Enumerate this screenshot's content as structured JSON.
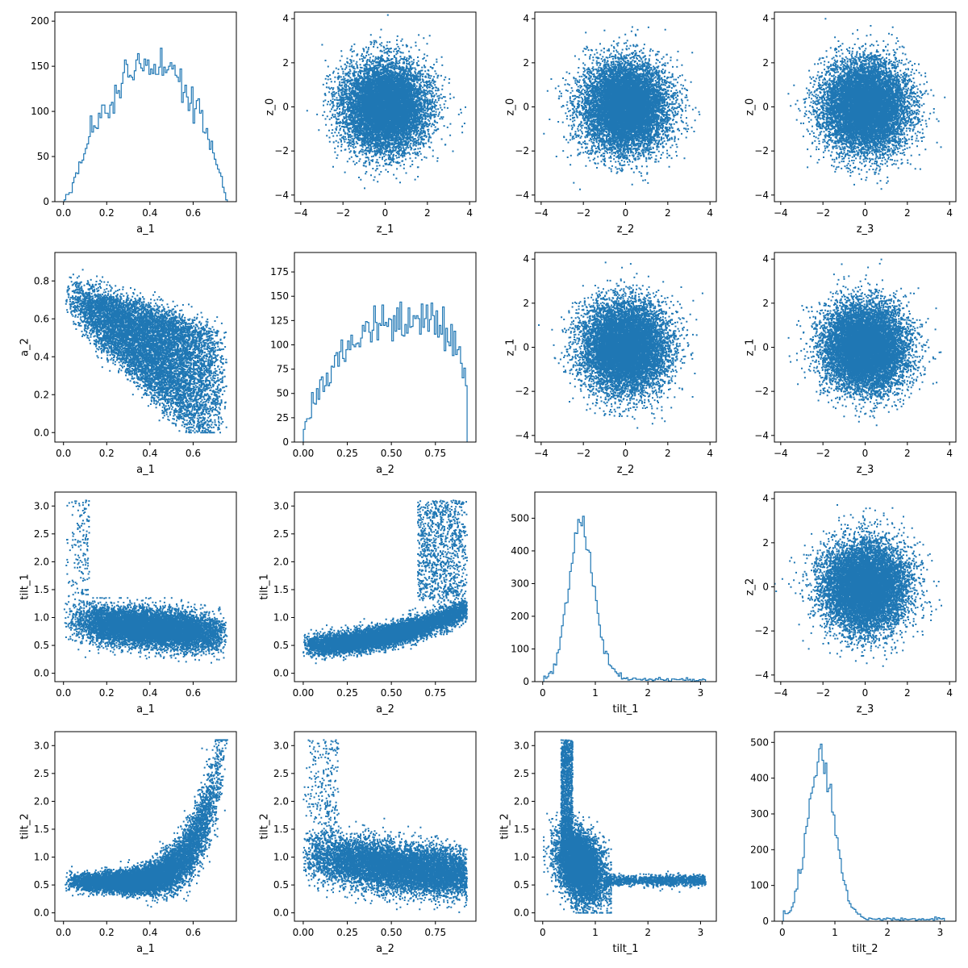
{
  "colors": {
    "series": "#1f77b4",
    "axes": "#000000",
    "background": "#ffffff"
  },
  "chart_data": [
    {
      "type": "histogram",
      "xlabel": "a_1",
      "ylabel": "",
      "xlim": [
        -0.04,
        0.8
      ],
      "ylim": [
        0,
        210
      ],
      "xticks": [
        0.0,
        0.2,
        0.4,
        0.6
      ],
      "yticks": [
        0,
        50,
        100,
        150,
        200
      ],
      "dist": {
        "kind": "beta",
        "a": 2.2,
        "b": 2.0,
        "lo": 0.0,
        "hi": 0.76,
        "n": 10000,
        "bins": 100,
        "seed": 11
      }
    },
    {
      "type": "scatter",
      "xlabel": "z_1",
      "ylabel": "z_0",
      "xlim": [
        -4.3,
        4.3
      ],
      "ylim": [
        -4.3,
        4.3
      ],
      "xticks": [
        -4,
        -2,
        0,
        2,
        4
      ],
      "yticks": [
        -4,
        -2,
        0,
        2,
        4
      ],
      "dist": {
        "kind": "normal2d",
        "n": 10000,
        "seed": 21
      }
    },
    {
      "type": "scatter",
      "xlabel": "z_2",
      "ylabel": "z_0",
      "xlim": [
        -4.3,
        4.3
      ],
      "ylim": [
        -4.3,
        4.3
      ],
      "xticks": [
        -4,
        -2,
        0,
        2,
        4
      ],
      "yticks": [
        -4,
        -2,
        0,
        2,
        4
      ],
      "dist": {
        "kind": "normal2d",
        "n": 10000,
        "seed": 22
      }
    },
    {
      "type": "scatter",
      "xlabel": "z_3",
      "ylabel": "z_0",
      "xlim": [
        -4.3,
        4.3
      ],
      "ylim": [
        -4.3,
        4.3
      ],
      "xticks": [
        -4,
        -2,
        0,
        2,
        4
      ],
      "yticks": [
        -4,
        -2,
        0,
        2,
        4
      ],
      "dist": {
        "kind": "normal2d",
        "n": 10000,
        "seed": 23
      }
    },
    {
      "type": "scatter",
      "xlabel": "a_1",
      "ylabel": "a_2",
      "xlim": [
        -0.04,
        0.8
      ],
      "ylim": [
        -0.05,
        0.95
      ],
      "xticks": [
        0.0,
        0.2,
        0.4,
        0.6
      ],
      "yticks": [
        0.0,
        0.2,
        0.4,
        0.6,
        0.8
      ],
      "dist": {
        "kind": "spin_corr",
        "n": 9000,
        "seed": 31
      }
    },
    {
      "type": "histogram",
      "xlabel": "a_2",
      "ylabel": "",
      "xlim": [
        -0.05,
        0.98
      ],
      "ylim": [
        0,
        195
      ],
      "xticks": [
        0.0,
        0.25,
        0.5,
        0.75
      ],
      "yticks": [
        0,
        25,
        50,
        75,
        100,
        125,
        150,
        175
      ],
      "dist": {
        "kind": "beta",
        "a": 1.6,
        "b": 1.3,
        "lo": 0.0,
        "hi": 0.93,
        "n": 10000,
        "bins": 100,
        "seed": 12
      }
    },
    {
      "type": "scatter",
      "xlabel": "z_2",
      "ylabel": "z_1",
      "xlim": [
        -4.3,
        4.3
      ],
      "ylim": [
        -4.3,
        4.3
      ],
      "xticks": [
        -4,
        -2,
        0,
        2,
        4
      ],
      "yticks": [
        -4,
        -2,
        0,
        2,
        4
      ],
      "dist": {
        "kind": "normal2d",
        "n": 10000,
        "seed": 24
      }
    },
    {
      "type": "scatter",
      "xlabel": "z_3",
      "ylabel": "z_1",
      "xlim": [
        -4.3,
        4.3
      ],
      "ylim": [
        -4.3,
        4.3
      ],
      "xticks": [
        -4,
        -2,
        0,
        2,
        4
      ],
      "yticks": [
        -4,
        -2,
        0,
        2,
        4
      ],
      "dist": {
        "kind": "normal2d",
        "n": 10000,
        "seed": 25
      }
    },
    {
      "type": "scatter",
      "xlabel": "a_1",
      "ylabel": "tilt_1",
      "xlim": [
        -0.04,
        0.8
      ],
      "ylim": [
        -0.15,
        3.25
      ],
      "xticks": [
        0.0,
        0.2,
        0.4,
        0.6
      ],
      "yticks": [
        0.0,
        0.5,
        1.0,
        1.5,
        2.0,
        2.5,
        3.0
      ],
      "dist": {
        "kind": "tilt_vs_a",
        "which": "a1_tilt1",
        "n": 9000,
        "seed": 41
      }
    },
    {
      "type": "scatter",
      "xlabel": "a_2",
      "ylabel": "tilt_1",
      "xlim": [
        -0.05,
        0.98
      ],
      "ylim": [
        -0.15,
        3.25
      ],
      "xticks": [
        0.0,
        0.25,
        0.5,
        0.75
      ],
      "yticks": [
        0.0,
        0.5,
        1.0,
        1.5,
        2.0,
        2.5,
        3.0
      ],
      "dist": {
        "kind": "tilt_vs_a",
        "which": "a2_tilt1",
        "n": 9000,
        "seed": 42
      }
    },
    {
      "type": "histogram",
      "xlabel": "tilt_1",
      "ylabel": "",
      "xlim": [
        -0.15,
        3.3
      ],
      "ylim": [
        0,
        580
      ],
      "xticks": [
        0,
        1,
        2,
        3
      ],
      "yticks": [
        0,
        100,
        200,
        300,
        400,
        500
      ],
      "dist": {
        "kind": "tilt_hist",
        "mode": 0.72,
        "sd": 0.24,
        "n": 10000,
        "bins": 100,
        "seed": 13
      }
    },
    {
      "type": "scatter",
      "xlabel": "z_3",
      "ylabel": "z_2",
      "xlim": [
        -4.3,
        4.3
      ],
      "ylim": [
        -4.3,
        4.3
      ],
      "xticks": [
        -4,
        -2,
        0,
        2,
        4
      ],
      "yticks": [
        -4,
        -2,
        0,
        2,
        4
      ],
      "dist": {
        "kind": "normal2d",
        "n": 10000,
        "seed": 26
      }
    },
    {
      "type": "scatter",
      "xlabel": "a_1",
      "ylabel": "tilt_2",
      "xlim": [
        -0.04,
        0.8
      ],
      "ylim": [
        -0.15,
        3.25
      ],
      "xticks": [
        0.0,
        0.2,
        0.4,
        0.6
      ],
      "yticks": [
        0.0,
        0.5,
        1.0,
        1.5,
        2.0,
        2.5,
        3.0
      ],
      "dist": {
        "kind": "tilt_vs_a",
        "which": "a1_tilt2",
        "n": 9000,
        "seed": 43
      }
    },
    {
      "type": "scatter",
      "xlabel": "a_2",
      "ylabel": "tilt_2",
      "xlim": [
        -0.05,
        0.98
      ],
      "ylim": [
        -0.15,
        3.25
      ],
      "xticks": [
        0.0,
        0.25,
        0.5,
        0.75
      ],
      "yticks": [
        0.0,
        0.5,
        1.0,
        1.5,
        2.0,
        2.5,
        3.0
      ],
      "dist": {
        "kind": "tilt_vs_a",
        "which": "a2_tilt2",
        "n": 9000,
        "seed": 44
      }
    },
    {
      "type": "scatter",
      "xlabel": "tilt_1",
      "ylabel": "tilt_2",
      "xlim": [
        -0.15,
        3.3
      ],
      "ylim": [
        -0.15,
        3.25
      ],
      "xticks": [
        0,
        1,
        2,
        3
      ],
      "yticks": [
        0.0,
        0.5,
        1.0,
        1.5,
        2.0,
        2.5,
        3.0
      ],
      "dist": {
        "kind": "tilt_tilt",
        "n": 9000,
        "seed": 45
      }
    },
    {
      "type": "histogram",
      "xlabel": "tilt_2",
      "ylabel": "",
      "xlim": [
        -0.15,
        3.3
      ],
      "ylim": [
        0,
        530
      ],
      "xticks": [
        0,
        1,
        2,
        3
      ],
      "yticks": [
        0,
        100,
        200,
        300,
        400,
        500
      ],
      "dist": {
        "kind": "tilt_hist",
        "mode": 0.72,
        "sd": 0.25,
        "n": 10000,
        "bins": 100,
        "seed": 14
      }
    }
  ]
}
